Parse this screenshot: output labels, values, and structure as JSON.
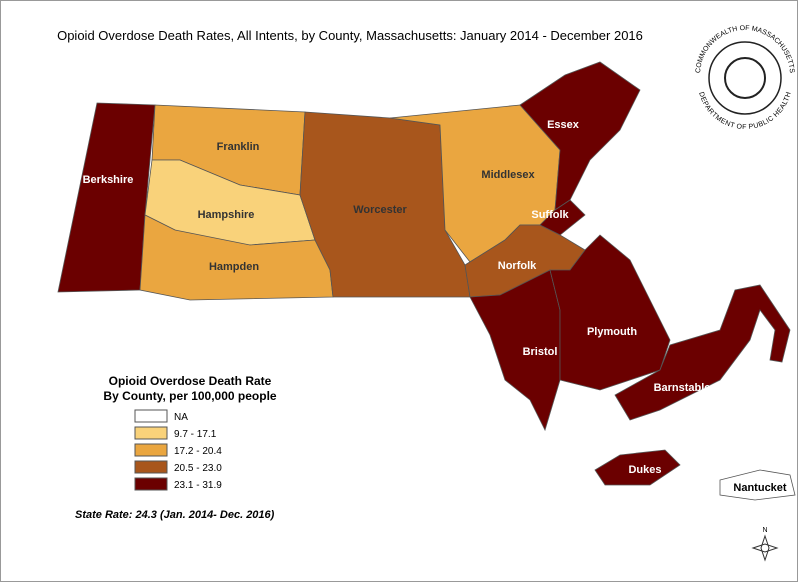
{
  "title": "Opioid Overdose Death Rates, All Intents, by County, Massachusetts: January 2014 - December 2016",
  "logo": {
    "top": "COMMONWEALTH OF MASSACHUSETTS",
    "bottom": "DEPARTMENT OF PUBLIC HEALTH"
  },
  "counties": [
    {
      "name": "Berkshire",
      "color": "#6b0000"
    },
    {
      "name": "Franklin",
      "color": "#eaa640"
    },
    {
      "name": "Hampshire",
      "color": "#f9d27a"
    },
    {
      "name": "Hampden",
      "color": "#eaa640"
    },
    {
      "name": "Worcester",
      "color": "#a8561c"
    },
    {
      "name": "Middlesex",
      "color": "#eaa640"
    },
    {
      "name": "Essex",
      "color": "#6b0000"
    },
    {
      "name": "Suffolk",
      "color": "#6b0000"
    },
    {
      "name": "Norfolk",
      "color": "#a8561c"
    },
    {
      "name": "Bristol",
      "color": "#6b0000"
    },
    {
      "name": "Plymouth",
      "color": "#6b0000"
    },
    {
      "name": "Barnstable",
      "color": "#6b0000"
    },
    {
      "name": "Dukes",
      "color": "#6b0000"
    },
    {
      "name": "Nantucket",
      "color": "#ffffff"
    }
  ],
  "legend": {
    "title": [
      "Opioid Overdose Death Rate",
      "By County, per 100,000 people"
    ],
    "items": [
      {
        "label": "NA",
        "color": "#ffffff"
      },
      {
        "label": "9.7 - 17.1",
        "color": "#f9d27a"
      },
      {
        "label": "17.2 - 20.4",
        "color": "#eaa640"
      },
      {
        "label": "20.5 - 23.0",
        "color": "#a8561c"
      },
      {
        "label": "23.1 - 31.9",
        "color": "#6b0000"
      }
    ]
  },
  "note": "State Rate: 24.3 (Jan. 2014- Dec. 2016)",
  "compass": "N"
}
